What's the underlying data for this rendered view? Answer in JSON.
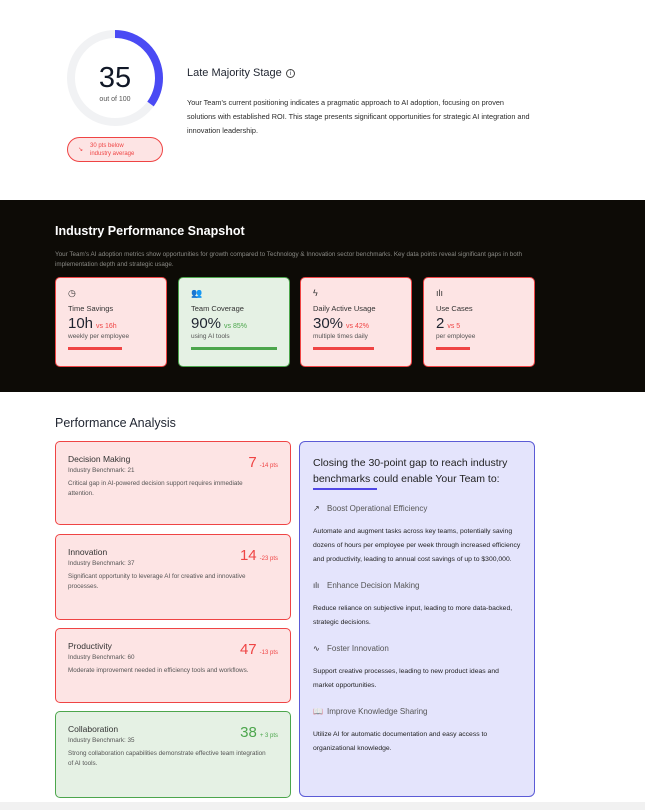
{
  "score": {
    "value": "35",
    "max_label": "out of 100",
    "progress": 0.35,
    "accent": "#4a4af4",
    "comparison_line1": "30 pts below",
    "comparison_line2": "industry average",
    "comparison_icon": "arrow-down-right-icon"
  },
  "stage": {
    "title": "Late Majority Stage",
    "description": "Your Team's current positioning indicates a pragmatic approach to AI adoption, focusing on proven solutions with established ROI. This stage presents significant opportunities for strategic AI integration and innovation leadership."
  },
  "snapshot": {
    "title": "Industry Performance Snapshot",
    "description": "Your Team's AI adoption metrics show opportunities for growth compared to Technology & Innovation sector benchmarks. Key data points reveal significant gaps in both implementation depth and strategic usage.",
    "cards": [
      {
        "icon": "clock-icon",
        "label": "Time Savings",
        "value": "10h",
        "vs": "vs 16h",
        "sub": "weekly per employee",
        "status": "below",
        "progress": 0.625
      },
      {
        "icon": "users-icon",
        "label": "Team Coverage",
        "value": "90%",
        "vs": "vs 85%",
        "sub": "using AI tools",
        "status": "above",
        "progress": 1
      },
      {
        "icon": "zap-icon",
        "label": "Daily Active Usage",
        "value": "30%",
        "vs": "vs 42%",
        "sub": "multiple times daily",
        "status": "below",
        "progress": 0.71
      },
      {
        "icon": "bar-chart-icon",
        "label": "Use Cases",
        "value": "2",
        "vs": "vs 5",
        "sub": "per employee",
        "status": "below",
        "progress": 0.4
      }
    ]
  },
  "analysis": {
    "title": "Performance Analysis",
    "items": [
      {
        "title": "Decision Making",
        "benchmark": "Industry Benchmark: 21",
        "score": "7",
        "diff": "-14 pts",
        "description": "Critical gap in AI-powered decision support requires immediate attention.",
        "status": "below"
      },
      {
        "title": "Innovation",
        "benchmark": "Industry Benchmark: 37",
        "score": "14",
        "diff": "-23 pts",
        "description": "Significant opportunity to leverage AI for creative and innovative processes.",
        "status": "below"
      },
      {
        "title": "Productivity",
        "benchmark": "Industry Benchmark: 60",
        "score": "47",
        "diff": "-13 pts",
        "description": "Moderate improvement needed in efficiency tools and workflows.",
        "status": "below"
      },
      {
        "title": "Collaboration",
        "benchmark": "Industry Benchmark: 35",
        "score": "38",
        "diff": "+ 3 pts",
        "description": "Strong collaboration capabilities demonstrate effective team integration of AI tools.",
        "status": "above"
      }
    ]
  },
  "benefits": {
    "heading": "Closing the 30-point gap to reach industry benchmarks could enable Your Team to:",
    "items": [
      {
        "icon": "trending-up-icon",
        "title": "Boost Operational Efficiency",
        "text": "Automate and augment tasks across key teams, potentially saving dozens of hours per employee per week through increased efficiency and productivity, leading to annual cost savings of up to $300,000."
      },
      {
        "icon": "bar-chart-icon",
        "title": "Enhance Decision Making",
        "text": "Reduce reliance on subjective input, leading to more data-backed, strategic decisions."
      },
      {
        "icon": "activity-icon",
        "title": "Foster Innovation",
        "text": "Support creative processes, leading to new product ideas and market opportunities."
      },
      {
        "icon": "book-open-icon",
        "title": "Improve Knowledge Sharing",
        "text": "Utilize AI for automatic documentation and easy access to organizational knowledge."
      }
    ]
  }
}
